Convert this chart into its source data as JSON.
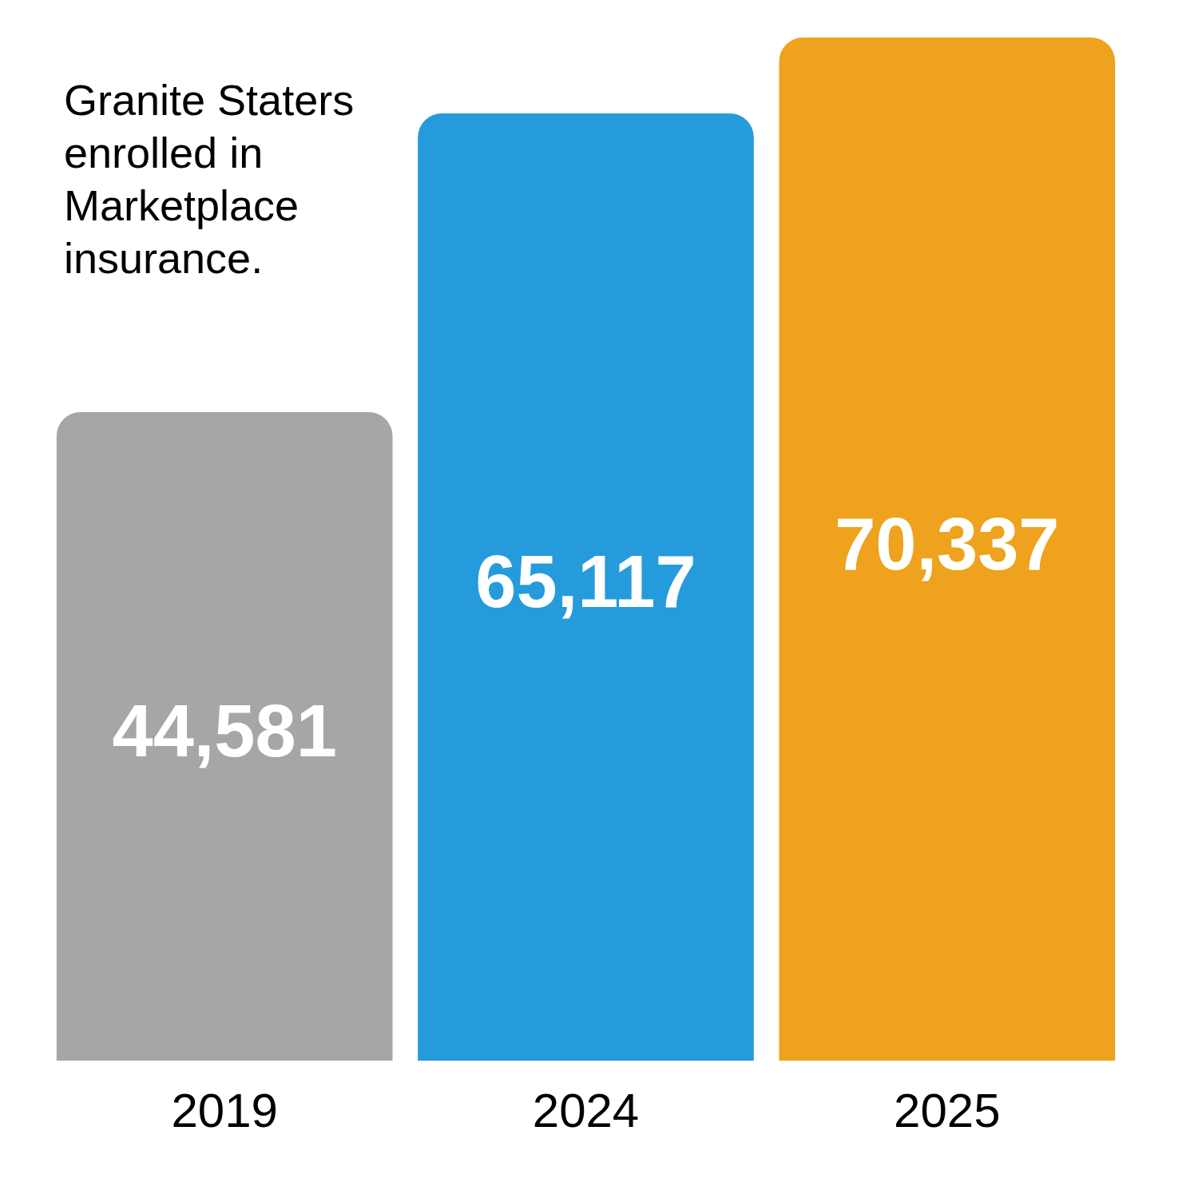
{
  "chart_data": {
    "type": "bar",
    "title": "Granite Staters enrolled in Marketplace insurance.",
    "categories": [
      "2019",
      "2024",
      "2025"
    ],
    "values": [
      44581,
      65117,
      70337
    ],
    "colors": [
      "#a6a6a6",
      "#259bdb",
      "#eea21d"
    ],
    "value_labels": [
      "44,581",
      "65,117",
      "70,337"
    ],
    "grid": false,
    "legend": false
  }
}
